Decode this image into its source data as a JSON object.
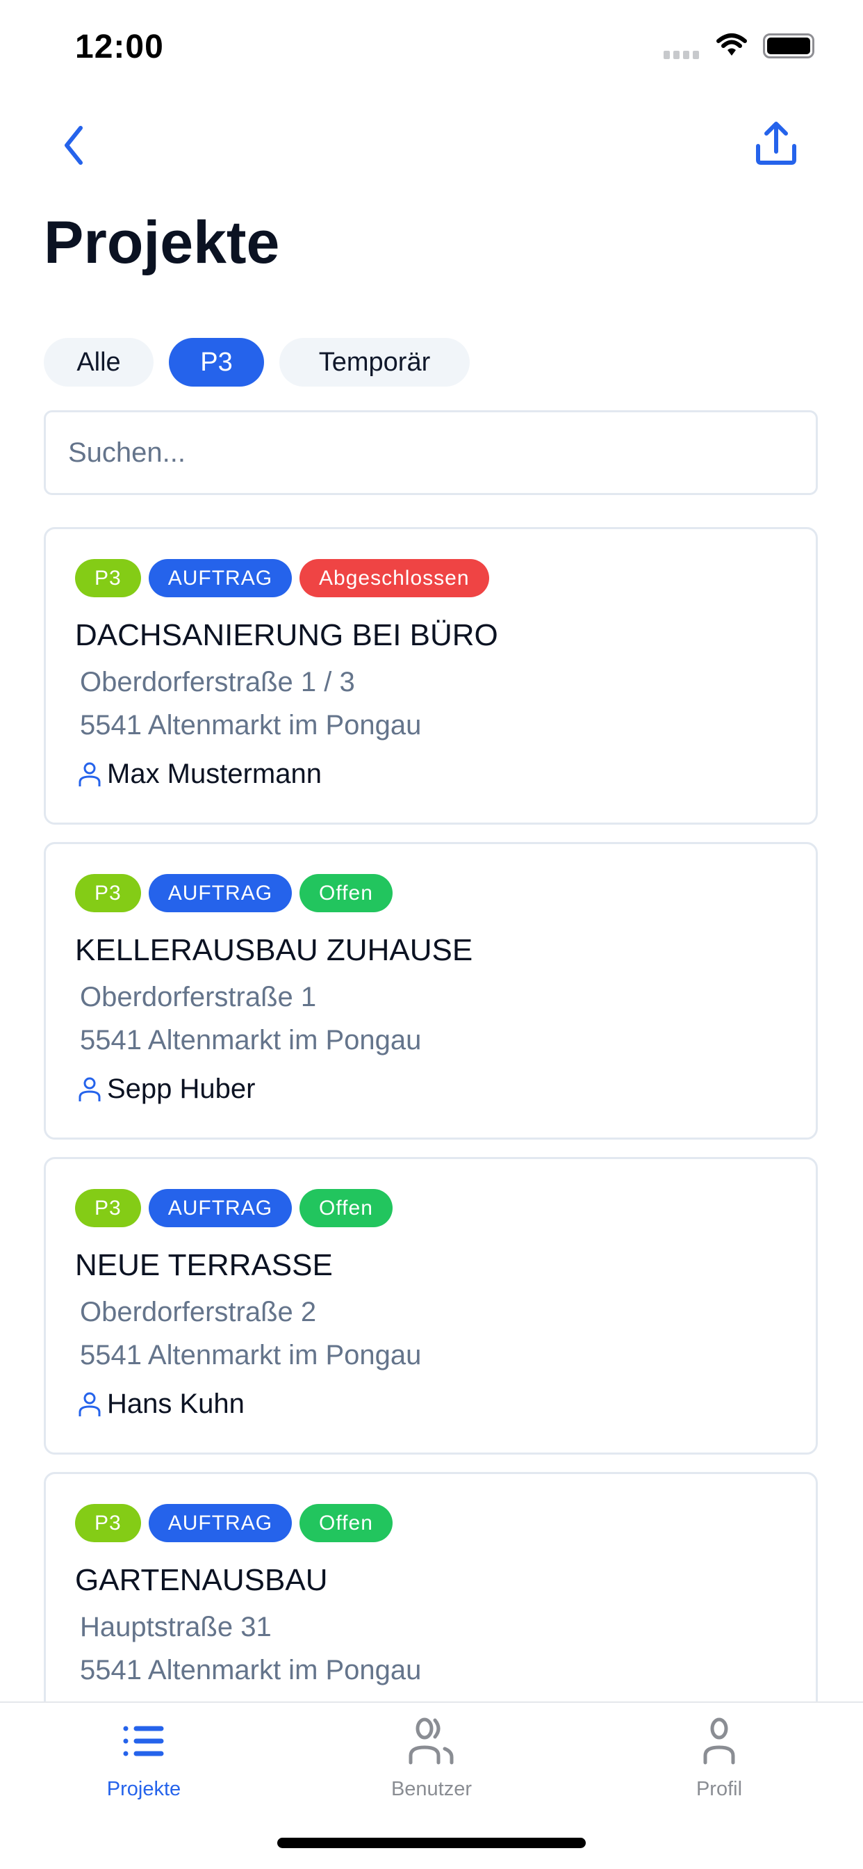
{
  "status_bar": {
    "time": "12:00"
  },
  "nav": {
    "back_icon": "chevron-left-icon",
    "share_icon": "share-upload-icon"
  },
  "page_title": "Projekte",
  "filters": [
    {
      "label": "Alle",
      "active": false
    },
    {
      "label": "P3",
      "active": true
    },
    {
      "label": "Temporär",
      "active": false
    }
  ],
  "search": {
    "placeholder": "Suchen...",
    "value": ""
  },
  "colors": {
    "accent": "#2563eb",
    "p3": "#84cc16",
    "auftrag": "#2563eb",
    "offen": "#22c55e",
    "abgeschlossen": "#ef4444"
  },
  "projects": [
    {
      "badges": [
        "P3",
        "AUFTRAG",
        "Abgeschlossen"
      ],
      "title": "DACHSANIERUNG BEI BÜRO",
      "street": "Oberdorferstraße 1 / 3",
      "city": "5541 Altenmarkt im Pongau",
      "person": "Max Mustermann"
    },
    {
      "badges": [
        "P3",
        "AUFTRAG",
        "Offen"
      ],
      "title": "KELLERAUSBAU ZUHAUSE",
      "street": "Oberdorferstraße 1",
      "city": "5541 Altenmarkt im Pongau",
      "person": "Sepp Huber"
    },
    {
      "badges": [
        "P3",
        "AUFTRAG",
        "Offen"
      ],
      "title": "NEUE TERRASSE",
      "street": "Oberdorferstraße 2",
      "city": "5541 Altenmarkt im Pongau",
      "person": "Hans Kuhn"
    },
    {
      "badges": [
        "P3",
        "AUFTRAG",
        "Offen"
      ],
      "title": "GARTENAUSBAU",
      "street": "Hauptstraße 31",
      "city": "5541 Altenmarkt im Pongau"
    }
  ],
  "tabbar": [
    {
      "label": "Projekte",
      "icon": "list-icon",
      "active": true
    },
    {
      "label": "Benutzer",
      "icon": "users-icon",
      "active": false
    },
    {
      "label": "Profil",
      "icon": "user-icon",
      "active": false
    }
  ]
}
